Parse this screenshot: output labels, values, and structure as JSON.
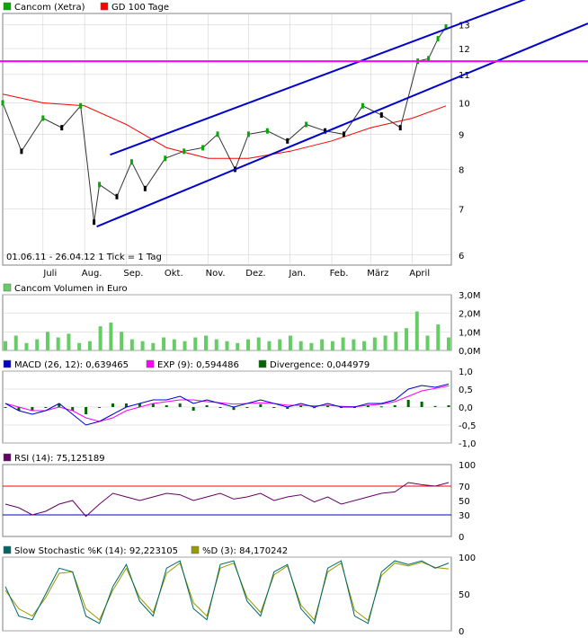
{
  "colors": {
    "price_up": "#00aa00",
    "price_down": "#000000",
    "sma100": "#ff0000",
    "channel": "#0000cc",
    "horizontal": "#ff00ff",
    "volume": "#66cc66",
    "macd": "#0000cc",
    "exp": "#ff00ff",
    "divergence": "#006600",
    "rsi": "#660066",
    "rsi_upper": "#ff0000",
    "rsi_lower": "#0000cc",
    "stoch_k": "#006666",
    "stoch_d": "#999900",
    "frame": "#808080",
    "grid": "#cccccc"
  },
  "chart_data": [
    {
      "type": "line",
      "panel": "price",
      "legend": [
        {
          "label": "Cancom (Xetra)",
          "color": "#00aa00"
        },
        {
          "label": "GD 100 Tage",
          "color": "#ff0000"
        }
      ],
      "x_tick_labels": [
        "Juli",
        "Aug.",
        "Sep.",
        "Okt.",
        "Nov.",
        "Dez.",
        "Jan.",
        "Feb.",
        "März",
        "April"
      ],
      "y_tick_labels": [
        "6",
        "7",
        "8",
        "9",
        "10",
        "11",
        "12",
        "13"
      ],
      "ylim": [
        5.8,
        13.5
      ],
      "y_scale": "log",
      "annotation": "01.06.11 - 26.04.12   1 Tick = 1 Tag",
      "series": [
        {
          "name": "Cancom (Xetra)",
          "x": [
            "2011-06-01",
            "2011-06-15",
            "2011-07-01",
            "2011-07-15",
            "2011-07-29",
            "2011-08-08",
            "2011-08-12",
            "2011-08-25",
            "2011-09-05",
            "2011-09-15",
            "2011-09-30",
            "2011-10-14",
            "2011-10-28",
            "2011-11-08",
            "2011-11-21",
            "2011-12-01",
            "2011-12-15",
            "2011-12-30",
            "2012-01-13",
            "2012-01-27",
            "2012-02-10",
            "2012-02-24",
            "2012-03-09",
            "2012-03-23",
            "2012-04-05",
            "2012-04-13",
            "2012-04-20",
            "2012-04-26"
          ],
          "values": [
            10.0,
            8.5,
            9.5,
            9.2,
            9.9,
            6.7,
            7.6,
            7.3,
            8.2,
            7.5,
            8.3,
            8.5,
            8.6,
            9.0,
            8.0,
            9.0,
            9.1,
            8.8,
            9.3,
            9.1,
            9.0,
            9.9,
            9.6,
            9.2,
            11.5,
            11.6,
            12.4,
            12.9
          ]
        },
        {
          "name": "GD 100 Tage",
          "x": [
            "2011-06-01",
            "2011-07-01",
            "2011-08-01",
            "2011-09-01",
            "2011-10-01",
            "2011-11-01",
            "2011-12-01",
            "2012-01-01",
            "2012-02-01",
            "2012-03-01",
            "2012-04-01",
            "2012-04-26"
          ],
          "values": [
            10.3,
            10.0,
            9.9,
            9.3,
            8.6,
            8.3,
            8.3,
            8.5,
            8.8,
            9.2,
            9.5,
            9.9
          ]
        }
      ],
      "annotations_lines": [
        {
          "kind": "channel-upper",
          "from": [
            "2011-08-20",
            8.4
          ],
          "to": [
            "2012-04-30",
            12.9
          ]
        },
        {
          "kind": "channel-lower",
          "from": [
            "2011-08-10",
            6.6
          ],
          "to": [
            "2012-04-30",
            10.8
          ]
        },
        {
          "kind": "horizontal",
          "value": 11.5
        }
      ]
    },
    {
      "type": "bar",
      "panel": "volume",
      "legend": [
        {
          "label": "Cancom Volumen in Euro",
          "color": "#66cc66"
        }
      ],
      "y_tick_labels": [
        "0,0M",
        "1,0M",
        "2,0M",
        "3,0M"
      ],
      "ylim": [
        0,
        3.0
      ],
      "series": [
        {
          "name": "Cancom Volumen in Euro",
          "values": [
            0.5,
            0.8,
            0.4,
            0.6,
            1.0,
            0.7,
            0.9,
            0.4,
            0.5,
            1.3,
            1.5,
            1.0,
            0.6,
            0.5,
            0.4,
            0.7,
            0.6,
            0.5,
            0.7,
            0.8,
            0.6,
            0.5,
            0.4,
            0.6,
            0.7,
            0.5,
            0.6,
            0.8,
            0.5,
            0.4,
            0.6,
            0.5,
            0.7,
            0.6,
            0.5,
            0.7,
            0.8,
            1.0,
            1.2,
            2.1,
            0.8,
            1.4,
            0.7
          ]
        }
      ]
    },
    {
      "type": "line",
      "panel": "macd",
      "legend": [
        {
          "label": "MACD (26, 12): 0,639465",
          "color": "#0000cc"
        },
        {
          "label": "EXP (9): 0,594486",
          "color": "#ff00ff"
        },
        {
          "label": "Divergence: 0,044979",
          "color": "#006600"
        }
      ],
      "y_tick_labels": [
        "-1,0",
        "-0,5",
        "0,0",
        "0,5",
        "1,0"
      ],
      "ylim": [
        -1.0,
        1.0
      ],
      "series": [
        {
          "name": "MACD (26, 12)",
          "values": [
            0.1,
            -0.1,
            -0.2,
            -0.1,
            0.1,
            -0.2,
            -0.5,
            -0.4,
            -0.2,
            0.0,
            0.1,
            0.2,
            0.2,
            0.3,
            0.1,
            0.2,
            0.1,
            0.0,
            0.1,
            0.2,
            0.1,
            0.0,
            0.1,
            0.0,
            0.1,
            0.0,
            0.0,
            0.1,
            0.1,
            0.2,
            0.5,
            0.6,
            0.55,
            0.64
          ]
        },
        {
          "name": "EXP (9)",
          "values": [
            0.1,
            0.0,
            -0.1,
            -0.1,
            0.0,
            -0.1,
            -0.3,
            -0.4,
            -0.3,
            -0.1,
            0.0,
            0.1,
            0.15,
            0.2,
            0.2,
            0.15,
            0.12,
            0.08,
            0.1,
            0.12,
            0.1,
            0.05,
            0.05,
            0.03,
            0.05,
            0.02,
            0.01,
            0.05,
            0.08,
            0.15,
            0.3,
            0.45,
            0.52,
            0.59
          ]
        }
      ]
    },
    {
      "type": "line",
      "panel": "rsi",
      "legend": [
        {
          "label": "RSI (14): 75,125189",
          "color": "#660066"
        }
      ],
      "y_tick_labels": [
        "0",
        "30",
        "50",
        "70",
        "100"
      ],
      "ylim": [
        0,
        100
      ],
      "reference_lines": [
        70,
        30
      ],
      "series": [
        {
          "name": "RSI (14)",
          "values": [
            45,
            40,
            30,
            35,
            45,
            50,
            28,
            45,
            60,
            55,
            50,
            55,
            60,
            58,
            50,
            55,
            60,
            52,
            55,
            60,
            50,
            55,
            58,
            48,
            55,
            45,
            50,
            55,
            60,
            62,
            75,
            72,
            70,
            75
          ]
        }
      ]
    },
    {
      "type": "line",
      "panel": "stochastic",
      "legend": [
        {
          "label": "Slow Stochastic %K (14): 92,223105",
          "color": "#006666"
        },
        {
          "label": "%D (3): 84,170242",
          "color": "#999900"
        }
      ],
      "y_tick_labels": [
        "0",
        "50",
        "100"
      ],
      "ylim": [
        0,
        100
      ],
      "series": [
        {
          "name": "Slow Stochastic %K (14)",
          "values": [
            60,
            20,
            15,
            50,
            85,
            80,
            20,
            10,
            60,
            90,
            40,
            20,
            85,
            95,
            30,
            15,
            90,
            95,
            40,
            20,
            80,
            90,
            30,
            10,
            85,
            95,
            20,
            10,
            80,
            95,
            90,
            95,
            85,
            92
          ]
        },
        {
          "name": "%D (3)",
          "values": [
            55,
            30,
            20,
            45,
            78,
            80,
            30,
            15,
            55,
            85,
            45,
            25,
            78,
            92,
            38,
            20,
            85,
            92,
            45,
            25,
            76,
            88,
            35,
            15,
            80,
            92,
            28,
            14,
            75,
            92,
            88,
            93,
            86,
            84
          ]
        }
      ]
    }
  ]
}
